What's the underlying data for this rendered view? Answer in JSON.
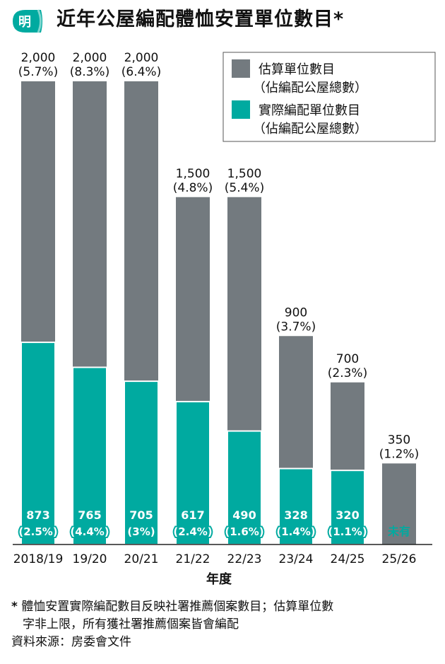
{
  "header": {
    "logo_text": "明",
    "title": "近年公屋編配體恤安置單位數目*"
  },
  "colors": {
    "estimated": "#737a7f",
    "actual": "#00aaa0",
    "logo_bg": "#00aaa0"
  },
  "chart_data": {
    "type": "bar",
    "categories": [
      "2018/19",
      "19/20",
      "20/21",
      "21/22",
      "22/23",
      "23/24",
      "24/25",
      "25/26"
    ],
    "series": [
      {
        "name": "估算單位數目（佔編配公屋總數）",
        "values": [
          2000,
          2000,
          2000,
          1500,
          1500,
          900,
          700,
          350
        ],
        "labels": [
          "2,000",
          "2,000",
          "2,000",
          "1,500",
          "1,500",
          "900",
          "700",
          "350"
        ],
        "percent_labels": [
          "(5.7%)",
          "(8.3%)",
          "(6.4%)",
          "(4.8%)",
          "(5.4%)",
          "(3.7%)",
          "(2.3%)",
          "(1.2%)"
        ]
      },
      {
        "name": "實際編配單位數目（佔編配公屋總數）",
        "values": [
          873,
          765,
          705,
          617,
          490,
          328,
          320,
          null
        ],
        "labels": [
          "873",
          "765",
          "705",
          "617",
          "490",
          "328",
          "320",
          "未有"
        ],
        "percent_labels": [
          "(2.5%)",
          "(4.4%)",
          "(3%)",
          "(2.4%)",
          "(1.6%)",
          "(1.4%)",
          "(1.1%)",
          ""
        ]
      }
    ],
    "legend": [
      {
        "line1": "估算單位數目",
        "line2": "（佔編配公屋總數）"
      },
      {
        "line1": "實際編配單位數目",
        "line2": "（佔編配公屋總數）"
      }
    ],
    "legend_position": "top-right",
    "xlabel": "年度",
    "ylabel": "",
    "ylim": [
      0,
      2000
    ],
    "grid": false
  },
  "footnote": {
    "star": "*",
    "line1": "體恤安置實際編配數目反映社署推薦個案數目；估算單位數",
    "line2": "字非上限，所有獲社署推薦個案皆會編配",
    "source": "資料來源：房委會文件"
  }
}
